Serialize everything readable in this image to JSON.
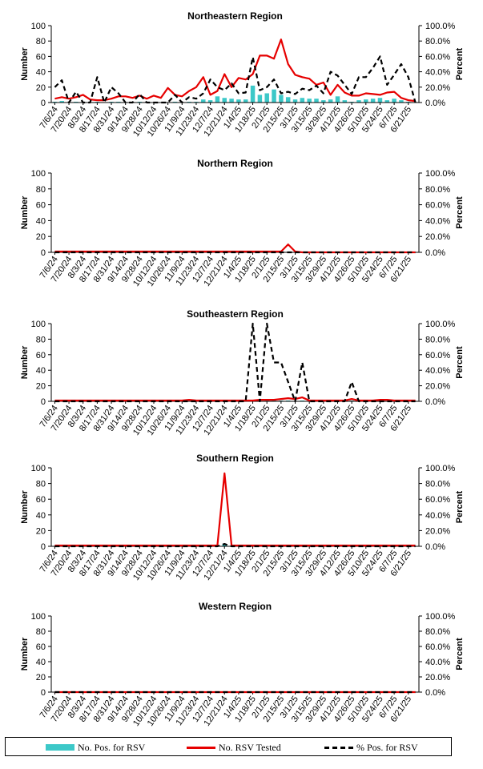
{
  "colors": {
    "bar": "#3cc8c8",
    "tested": "#e60000",
    "pct": "#000000"
  },
  "legend": {
    "positives": "No. Pos. for RSV",
    "tested": "No. RSV Tested",
    "percent": "% Pos. for RSV"
  },
  "chart_data": [
    {
      "type": "bar+line",
      "title": "Northeastern Region",
      "ylabel": "Number",
      "y2label": "Percent",
      "ylim": [
        0,
        100
      ],
      "y2lim": [
        0,
        100
      ],
      "yticks": [
        "0",
        "20",
        "40",
        "60",
        "80",
        "100"
      ],
      "y2ticks": [
        "0.0%",
        "20.0%",
        "40.0%",
        "60.0%",
        "80.0%",
        "100.0%"
      ],
      "xticks": [
        "7/6/24",
        "7/20/24",
        "8/3/24",
        "8/17/24",
        "8/31/24",
        "9/14/24",
        "9/28/24",
        "10/12/24",
        "10/26/24",
        "11/9/24",
        "11/23/24",
        "12/7/24",
        "12/21/24",
        "1/4/25",
        "1/18/25",
        "2/1/25",
        "2/15/25",
        "3/1/25",
        "3/15/25",
        "3/29/25",
        "4/12/25",
        "4/26/25",
        "5/10/25",
        "5/24/25",
        "6/7/25",
        "6/21/25"
      ],
      "weeks": 52,
      "series": [
        {
          "name": "No. Pos. for RSV",
          "type": "bar",
          "values": [
            1,
            2,
            0,
            1,
            0,
            0,
            1,
            0,
            1,
            1,
            0,
            0,
            1,
            0,
            0,
            0,
            0,
            1,
            0,
            1,
            1,
            4,
            3,
            8,
            6,
            5,
            4,
            4,
            22,
            10,
            12,
            17,
            10,
            7,
            4,
            6,
            5,
            5,
            3,
            4,
            8,
            3,
            1,
            3,
            4,
            5,
            6,
            3,
            5,
            3,
            1,
            0
          ]
        },
        {
          "name": "No. RSV Tested",
          "type": "line",
          "values": [
            5,
            7,
            5,
            7,
            10,
            4,
            3,
            3,
            5,
            8,
            8,
            6,
            9,
            5,
            9,
            6,
            19,
            10,
            8,
            15,
            20,
            33,
            10,
            15,
            37,
            20,
            32,
            30,
            37,
            61,
            61,
            57,
            82,
            50,
            36,
            33,
            31,
            23,
            26,
            10,
            23,
            13,
            9,
            9,
            12,
            11,
            10,
            13,
            14,
            6,
            3,
            2
          ]
        },
        {
          "name": "% Pos. for RSV",
          "type": "dashed",
          "values": [
            20,
            29,
            0,
            14,
            0,
            0,
            33,
            0,
            20,
            12,
            0,
            0,
            11,
            0,
            0,
            0,
            0,
            10,
            0,
            7,
            5,
            12,
            30,
            20,
            16,
            25,
            12,
            13,
            59,
            16,
            20,
            30,
            12,
            14,
            11,
            18,
            16,
            22,
            12,
            40,
            35,
            23,
            11,
            33,
            33,
            45,
            60,
            23,
            36,
            50,
            33,
            0
          ]
        }
      ]
    },
    {
      "type": "bar+line",
      "title": "Northern Region",
      "ylabel": "Number",
      "y2label": "Percent",
      "ylim": [
        0,
        100
      ],
      "y2lim": [
        0,
        100
      ],
      "yticks": [
        "0",
        "20",
        "40",
        "60",
        "80",
        "100"
      ],
      "y2ticks": [
        "0.0%",
        "20.0%",
        "40.0%",
        "60.0%",
        "80.0%",
        "100.0%"
      ],
      "xticks": [
        "7/6/24",
        "7/20/24",
        "8/3/24",
        "8/17/24",
        "8/31/24",
        "9/14/24",
        "9/28/24",
        "10/12/24",
        "10/26/24",
        "11/9/24",
        "11/23/24",
        "12/7/24",
        "12/21/24",
        "1/4/25",
        "1/18/25",
        "2/1/25",
        "2/15/25",
        "3/1/25",
        "3/15/25",
        "3/29/25",
        "4/12/25",
        "4/26/25",
        "5/10/25",
        "5/24/25",
        "6/7/25",
        "6/21/25"
      ],
      "weeks": 52,
      "series": [
        {
          "name": "No. Pos. for RSV",
          "type": "bar",
          "values": [
            0,
            0,
            0,
            0,
            0,
            0,
            0,
            0,
            0,
            0,
            0,
            0,
            0,
            0,
            0,
            0,
            0,
            0,
            0,
            0,
            0,
            0,
            0,
            0,
            0,
            0,
            0,
            0,
            0,
            0,
            0,
            0,
            0,
            0,
            0,
            0,
            0,
            0,
            0,
            0,
            0,
            0,
            0,
            0,
            0,
            0,
            0,
            0,
            0,
            0,
            0,
            0
          ]
        },
        {
          "name": "No. RSV Tested",
          "type": "line",
          "values": [
            1,
            1,
            1,
            1,
            1,
            1,
            1,
            1,
            1,
            1,
            1,
            1,
            1,
            1,
            1,
            1,
            1,
            1,
            1,
            1,
            1,
            1,
            1,
            1,
            1,
            1,
            1,
            1,
            1,
            1,
            1,
            1,
            1,
            10,
            1,
            0,
            0,
            0,
            0,
            0,
            0,
            0,
            0,
            0,
            0,
            0,
            0,
            0,
            0,
            0,
            0,
            0
          ]
        },
        {
          "name": "% Pos. for RSV",
          "type": "dashed",
          "values": [
            0,
            0,
            0,
            0,
            0,
            0,
            0,
            0,
            0,
            0,
            0,
            0,
            0,
            0,
            0,
            0,
            0,
            0,
            0,
            0,
            0,
            0,
            0,
            0,
            0,
            0,
            0,
            0,
            0,
            0,
            0,
            0,
            0,
            0,
            0,
            0,
            0,
            0,
            0,
            0,
            0,
            0,
            0,
            0,
            0,
            0,
            0,
            0,
            0,
            0,
            0,
            0
          ]
        }
      ]
    },
    {
      "type": "bar+line",
      "title": "Southeastern Region",
      "ylabel": "Number",
      "y2label": "Percent",
      "ylim": [
        0,
        100
      ],
      "y2lim": [
        0,
        100
      ],
      "yticks": [
        "0",
        "20",
        "40",
        "60",
        "80",
        "100"
      ],
      "y2ticks": [
        "0.0%",
        "20.0%",
        "40.0%",
        "60.0%",
        "80.0%",
        "100.0%"
      ],
      "xticks": [
        "7/6/24",
        "7/20/24",
        "8/3/24",
        "8/17/24",
        "8/31/24",
        "9/14/24",
        "9/28/24",
        "10/12/24",
        "10/26/24",
        "11/9/24",
        "11/23/24",
        "12/7/24",
        "12/21/24",
        "1/4/25",
        "1/18/25",
        "2/1/25",
        "2/15/25",
        "3/1/25",
        "3/15/25",
        "3/29/25",
        "4/12/25",
        "4/26/25",
        "5/10/25",
        "5/24/25",
        "6/7/25",
        "6/21/25"
      ],
      "weeks": 52,
      "series": [
        {
          "name": "No. Pos. for RSV",
          "type": "bar",
          "values": [
            0,
            0,
            0,
            0,
            0,
            0,
            0,
            0,
            0,
            0,
            0,
            0,
            0,
            0,
            0,
            0,
            0,
            0,
            0,
            0,
            0,
            0,
            0,
            0,
            0,
            0,
            0,
            0,
            1,
            0,
            1,
            1,
            1,
            1,
            0,
            1,
            0,
            0,
            0,
            0,
            0,
            0,
            1,
            0,
            0,
            0,
            0,
            0,
            0,
            0,
            0,
            0
          ]
        },
        {
          "name": "No. RSV Tested",
          "type": "line",
          "values": [
            1,
            1,
            1,
            1,
            1,
            1,
            1,
            1,
            1,
            1,
            1,
            1,
            1,
            1,
            1,
            1,
            1,
            1,
            1,
            2,
            1,
            1,
            1,
            1,
            1,
            1,
            1,
            1,
            1,
            2,
            2,
            2,
            3,
            4,
            3,
            5,
            1,
            1,
            1,
            1,
            1,
            1,
            3,
            1,
            1,
            1,
            2,
            2,
            1,
            1,
            1,
            1
          ]
        },
        {
          "name": "% Pos. for RSV",
          "type": "dashed",
          "values": [
            0,
            0,
            0,
            0,
            0,
            0,
            0,
            0,
            0,
            0,
            0,
            0,
            0,
            0,
            0,
            0,
            0,
            0,
            0,
            0,
            0,
            0,
            0,
            0,
            0,
            0,
            0,
            0,
            100,
            0,
            100,
            50,
            50,
            25,
            0,
            50,
            0,
            0,
            0,
            0,
            0,
            0,
            25,
            0,
            0,
            0,
            0,
            0,
            0,
            0,
            0,
            0
          ]
        }
      ]
    },
    {
      "type": "bar+line",
      "title": "Southern Region",
      "ylabel": "Number",
      "y2label": "Percent",
      "ylim": [
        0,
        100
      ],
      "y2lim": [
        0,
        100
      ],
      "yticks": [
        "0",
        "20",
        "40",
        "60",
        "80",
        "100"
      ],
      "y2ticks": [
        "0.0%",
        "20.0%",
        "40.0%",
        "60.0%",
        "80.0%",
        "100.0%"
      ],
      "xticks": [
        "7/6/24",
        "7/20/24",
        "8/3/24",
        "8/17/24",
        "8/31/24",
        "9/14/24",
        "9/28/24",
        "10/12/24",
        "10/26/24",
        "11/9/24",
        "11/23/24",
        "12/7/24",
        "12/21/24",
        "1/4/25",
        "1/18/25",
        "2/1/25",
        "2/15/25",
        "3/1/25",
        "3/15/25",
        "3/29/25",
        "4/12/25",
        "4/26/25",
        "5/10/25",
        "5/24/25",
        "6/7/25",
        "6/21/25"
      ],
      "weeks": 52,
      "series": [
        {
          "name": "No. Pos. for RSV",
          "type": "bar",
          "values": [
            0,
            0,
            0,
            0,
            0,
            0,
            0,
            0,
            0,
            0,
            0,
            0,
            0,
            0,
            0,
            0,
            0,
            0,
            0,
            0,
            0,
            0,
            0,
            0,
            3,
            0,
            0,
            0,
            0,
            0,
            0,
            0,
            0,
            0,
            0,
            0,
            0,
            0,
            0,
            0,
            0,
            0,
            0,
            0,
            0,
            0,
            0,
            0,
            0,
            0,
            0,
            0
          ]
        },
        {
          "name": "No. RSV Tested",
          "type": "line",
          "values": [
            1,
            1,
            1,
            1,
            1,
            1,
            1,
            1,
            1,
            1,
            1,
            1,
            1,
            1,
            1,
            1,
            1,
            1,
            1,
            1,
            1,
            1,
            1,
            1,
            93,
            1,
            1,
            1,
            1,
            1,
            1,
            1,
            1,
            1,
            1,
            1,
            1,
            1,
            1,
            1,
            1,
            1,
            1,
            1,
            1,
            1,
            1,
            1,
            1,
            1,
            1,
            1
          ]
        },
        {
          "name": "% Pos. for RSV",
          "type": "dashed",
          "values": [
            0,
            0,
            0,
            0,
            0,
            0,
            0,
            0,
            0,
            0,
            0,
            0,
            0,
            0,
            0,
            0,
            0,
            0,
            0,
            0,
            0,
            0,
            0,
            0,
            3,
            0,
            0,
            0,
            0,
            0,
            0,
            0,
            0,
            0,
            0,
            0,
            0,
            0,
            0,
            0,
            0,
            0,
            0,
            0,
            0,
            0,
            0,
            0,
            0,
            0,
            0,
            0
          ]
        }
      ]
    },
    {
      "type": "bar+line",
      "title": "Western Region",
      "ylabel": "Number",
      "y2label": "Percent",
      "ylim": [
        0,
        100
      ],
      "y2lim": [
        0,
        100
      ],
      "yticks": [
        "0",
        "20",
        "40",
        "60",
        "80",
        "100"
      ],
      "y2ticks": [
        "0.0%",
        "20.0%",
        "40.0%",
        "60.0%",
        "80.0%",
        "100.0%"
      ],
      "xticks": [
        "7/6/24",
        "7/20/24",
        "8/3/24",
        "8/17/24",
        "8/31/24",
        "9/14/24",
        "9/28/24",
        "10/12/24",
        "10/26/24",
        "11/9/24",
        "11/23/24",
        "12/7/24",
        "12/21/24",
        "1/4/25",
        "1/18/25",
        "2/1/25",
        "2/15/25",
        "3/1/25",
        "3/15/25",
        "3/29/25",
        "4/12/25",
        "4/26/25",
        "5/10/25",
        "5/24/25",
        "6/7/25",
        "6/21/25"
      ],
      "weeks": 52,
      "series": [
        {
          "name": "No. Pos. for RSV",
          "type": "bar",
          "values": [
            0,
            0,
            0,
            0,
            0,
            0,
            0,
            0,
            0,
            0,
            0,
            0,
            0,
            0,
            0,
            0,
            0,
            0,
            0,
            0,
            0,
            0,
            0,
            0,
            0,
            0,
            0,
            0,
            0,
            0,
            0,
            0,
            0,
            0,
            0,
            0,
            0,
            0,
            0,
            0,
            0,
            0,
            0,
            0,
            0,
            0,
            0,
            0,
            0,
            0,
            0,
            0
          ]
        },
        {
          "name": "No. RSV Tested",
          "type": "line",
          "values": [
            0,
            0,
            0,
            0,
            0,
            0,
            0,
            0,
            0,
            0,
            0,
            0,
            0,
            0,
            0,
            0,
            0,
            0,
            0,
            0,
            0,
            0,
            0,
            0,
            0,
            0,
            0,
            0,
            0,
            0,
            0,
            0,
            0,
            0,
            0,
            0,
            0,
            0,
            0,
            0,
            0,
            0,
            0,
            0,
            0,
            0,
            0,
            0,
            0,
            0,
            0,
            0
          ]
        },
        {
          "name": "% Pos. for RSV",
          "type": "dashed",
          "values": [
            0,
            0,
            0,
            0,
            0,
            0,
            0,
            0,
            0,
            0,
            0,
            0,
            0,
            0,
            0,
            0,
            0,
            0,
            0,
            0,
            0,
            0,
            0,
            0,
            0,
            0,
            0,
            0,
            0,
            0,
            0,
            0,
            0,
            0,
            0,
            0,
            0,
            0,
            0,
            0,
            0,
            0,
            0,
            0,
            0,
            0,
            0,
            0,
            0,
            0,
            0,
            0
          ]
        }
      ]
    }
  ]
}
